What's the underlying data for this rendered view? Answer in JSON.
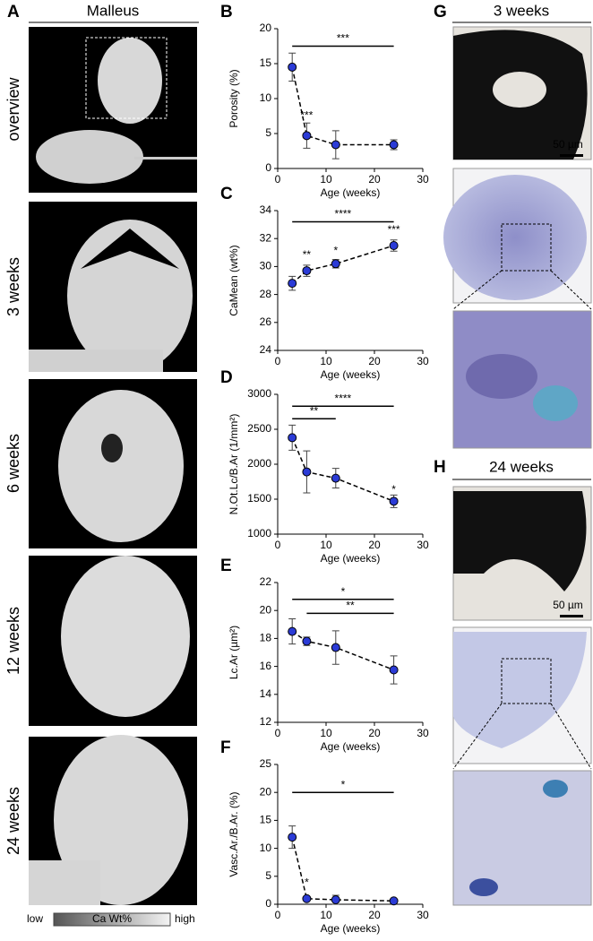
{
  "figure": {
    "panel_labels": [
      "A",
      "B",
      "C",
      "D",
      "E",
      "F",
      "G",
      "H"
    ],
    "malleus_title": "Malleus",
    "micro_ct_rows": [
      "overview",
      "3 weeks",
      "6 weeks",
      "12 weeks",
      "24 weeks"
    ],
    "colorbar": {
      "low": "low",
      "label": "Ca Wt%",
      "high": "high"
    },
    "histology": [
      {
        "title": "3 weeks",
        "scale": "50 µm"
      },
      {
        "title": "24 weeks",
        "scale": "50 µm"
      }
    ]
  },
  "chart_data": [
    {
      "type": "line",
      "y_label": "Porosity (%)",
      "x_label": "Age (weeks)",
      "x": [
        3,
        6,
        12,
        24
      ],
      "values": [
        14.5,
        4.7,
        3.4,
        3.4
      ],
      "errors": [
        2.0,
        1.8,
        2.0,
        0.7
      ],
      "color": "#2b3bd6",
      "xlim": [
        0,
        30
      ],
      "xticks": [
        0,
        10,
        20,
        30
      ],
      "ylim": [
        0,
        20
      ],
      "yticks": [
        0,
        5,
        10,
        15,
        20
      ],
      "brackets": [
        {
          "label": "***",
          "x1": 3,
          "x2": 24,
          "y": 17.5
        }
      ],
      "annotations": [
        {
          "text": "***",
          "x": 6,
          "y": 7.5
        }
      ]
    },
    {
      "type": "line",
      "y_label": "CaMean (wt%)",
      "x_label": "Age (weeks)",
      "x": [
        3,
        6,
        12,
        24
      ],
      "values": [
        28.8,
        29.7,
        30.2,
        31.5
      ],
      "errors": [
        0.5,
        0.4,
        0.3,
        0.4
      ],
      "color": "#2b3bd6",
      "xlim": [
        0,
        30
      ],
      "xticks": [
        0,
        10,
        20,
        30
      ],
      "ylim": [
        24,
        34
      ],
      "yticks": [
        24,
        26,
        28,
        30,
        32,
        34
      ],
      "brackets": [
        {
          "label": "****",
          "x1": 3,
          "x2": 24,
          "y": 33.2
        }
      ],
      "annotations": [
        {
          "text": "**",
          "x": 6,
          "y": 30.8
        },
        {
          "text": "*",
          "x": 12,
          "y": 31.1
        },
        {
          "text": "***",
          "x": 24,
          "y": 32.6
        }
      ]
    },
    {
      "type": "line",
      "y_label": "N.Ot.Lc/B.Ar (1/mm²)",
      "x_label": "Age (weeks)",
      "x": [
        3,
        6,
        12,
        24
      ],
      "values": [
        2380,
        1890,
        1800,
        1470
      ],
      "errors": [
        180,
        300,
        140,
        90
      ],
      "color": "#2b3bd6",
      "xlim": [
        0,
        30
      ],
      "xticks": [
        0,
        10,
        20,
        30
      ],
      "ylim": [
        1000,
        3000
      ],
      "yticks": [
        1000,
        1500,
        2000,
        2500,
        3000
      ],
      "brackets": [
        {
          "label": "****",
          "x1": 3,
          "x2": 24,
          "y": 2830
        },
        {
          "label": "**",
          "x1": 3,
          "x2": 12,
          "y": 2650
        }
      ],
      "annotations": [
        {
          "text": "*",
          "x": 24,
          "y": 1630
        }
      ]
    },
    {
      "type": "line",
      "y_label": "Lc.Ar (µm²)",
      "x_label": "Age (weeks)",
      "x": [
        3,
        6,
        12,
        24
      ],
      "values": [
        18.5,
        17.8,
        17.35,
        15.75
      ],
      "errors": [
        0.9,
        0.3,
        1.2,
        1.0
      ],
      "color": "#2b3bd6",
      "xlim": [
        0,
        30
      ],
      "xticks": [
        0,
        10,
        20,
        30
      ],
      "ylim": [
        12,
        22
      ],
      "yticks": [
        12,
        14,
        16,
        18,
        20,
        22
      ],
      "brackets": [
        {
          "label": "*",
          "x1": 3,
          "x2": 24,
          "y": 20.8
        },
        {
          "label": "**",
          "x1": 6,
          "x2": 24,
          "y": 19.8
        }
      ],
      "annotations": []
    },
    {
      "type": "line",
      "y_label": "Vasc.Ar./B.Ar. (%)",
      "x_label": "Age (weeks)",
      "x": [
        3,
        6,
        12,
        24
      ],
      "values": [
        12.0,
        1.0,
        0.8,
        0.6
      ],
      "errors": [
        2.0,
        0.3,
        0.8,
        0.3
      ],
      "color": "#2b3bd6",
      "xlim": [
        0,
        30
      ],
      "xticks": [
        0,
        10,
        20,
        30
      ],
      "ylim": [
        0,
        25
      ],
      "yticks": [
        0,
        5,
        10,
        15,
        20,
        25
      ],
      "brackets": [
        {
          "label": "*",
          "x1": 3,
          "x2": 24,
          "y": 20
        }
      ],
      "annotations": [
        {
          "text": "*",
          "x": 6,
          "y": 3.8
        }
      ]
    }
  ]
}
